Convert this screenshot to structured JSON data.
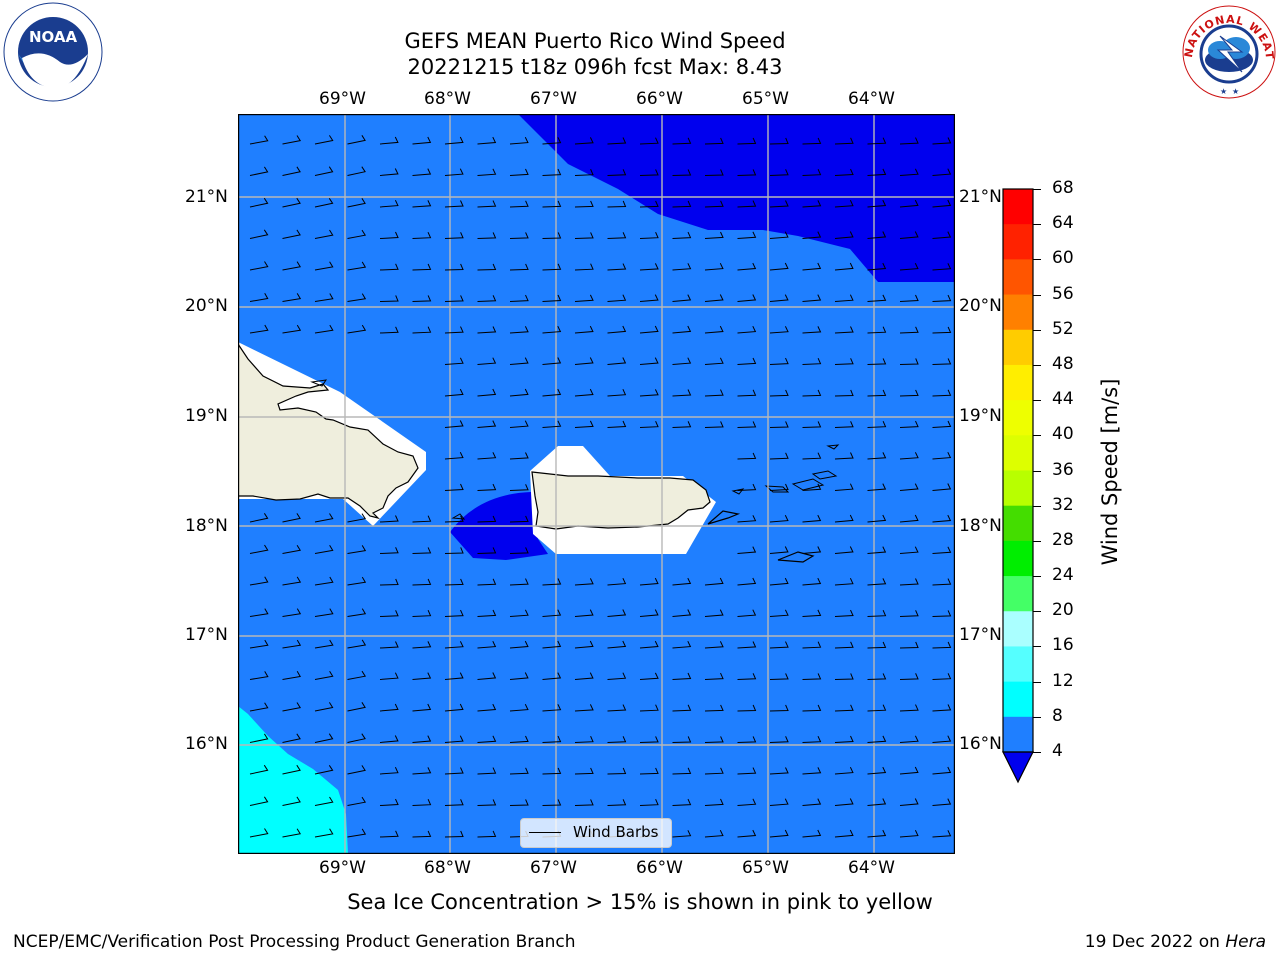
{
  "title": {
    "line1": "GEFS MEAN Puerto Rico Wind Speed",
    "line2": "20221215 t18z 096h fcst   Max: 8.43"
  },
  "map": {
    "lon_labels": [
      "69°W",
      "68°W",
      "67°W",
      "66°W",
      "65°W",
      "64°W"
    ],
    "lat_labels": [
      "21°N",
      "20°N",
      "19°N",
      "18°N",
      "17°N",
      "16°N"
    ],
    "colors": {
      "ocean": "#1f7fff",
      "strong_wind": "#0000ee",
      "cyan_zone": "#00ffff",
      "land": "#efeedd",
      "grid": "#b8b8b8"
    },
    "legend_label": "Wind Barbs"
  },
  "colorbar": {
    "label": "Wind Speed [m/s]",
    "ticks": [
      "68",
      "64",
      "60",
      "56",
      "52",
      "48",
      "44",
      "40",
      "36",
      "32",
      "28",
      "24",
      "20",
      "16",
      "12",
      "8",
      "4"
    ],
    "colors": [
      "#ff0000",
      "#ff2200",
      "#ff5500",
      "#ff8000",
      "#ffaa00",
      "#ffcc00",
      "#ffee00",
      "#eeff00",
      "#ddff00",
      "#b8ff00",
      "#44dd00",
      "#00ee00",
      "#44ff66",
      "#66ff99",
      "#aaffff",
      "#55ffff",
      "#00ffff",
      "#1f7fff"
    ],
    "extend_color": "#0000ee"
  },
  "note": "Sea Ice Concentration > 15% is shown in pink to yellow",
  "footer": {
    "left": "NCEP/EMC/Verification Post Processing Product Generation Branch",
    "date": "19 Dec 2022 on ",
    "machine": "Hera"
  },
  "logos": {
    "noaa": "NOAA",
    "nws": "NATIONAL WEATHER SERVICE"
  }
}
